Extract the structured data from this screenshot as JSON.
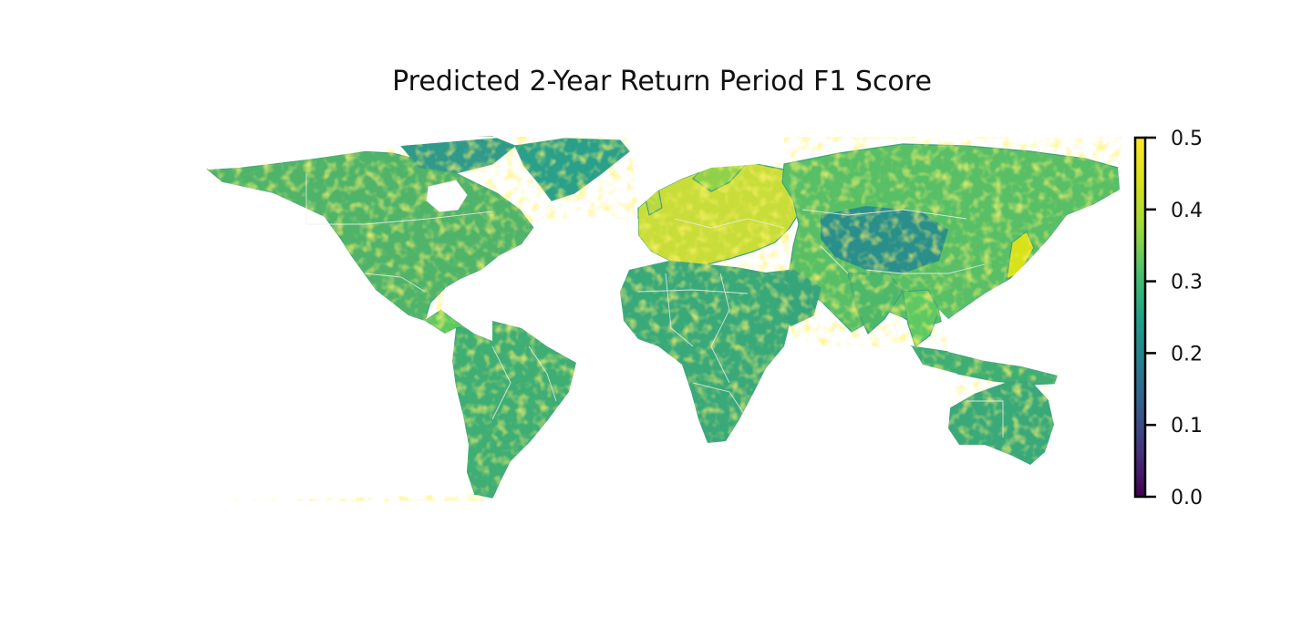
{
  "title": "Predicted 2-Year Return Period F1 Score",
  "colorbar": {
    "min": 0.0,
    "max": 0.5,
    "colormap": "viridis",
    "ticks": [
      "0.0",
      "0.1",
      "0.2",
      "0.3",
      "0.4",
      "0.5"
    ]
  },
  "palette": {
    "low": "#440154",
    "mid_low": "#3b528b",
    "mid": "#21918c",
    "mid_high": "#5ec962",
    "high": "#fde725",
    "border": "#e8e8e8"
  }
}
